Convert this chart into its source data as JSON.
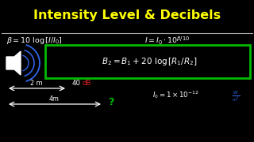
{
  "bg_color": "#000000",
  "title_color": "#ffff00",
  "white": "#ffffff",
  "green": "#00bb00",
  "blue": "#3366ee",
  "red": "#dd2222",
  "title_text": "Intensity Level & Decibels",
  "title_fontsize": 11.5,
  "formula1_left": "$\\beta = 10\\ \\log\\left[I/I_0\\right]$",
  "formula1_right": "$I = I_0 \\cdot 10^{\\beta/10}$",
  "box_formula": "$B_2 = B_1 + 20\\ \\log\\left[R_1/R_2\\right]$",
  "arrow1_label": "2 m",
  "arrow1_val": "40",
  "arrow1_unit": "dB",
  "arrow2_label": "4m",
  "arrow2_q": "?",
  "i0_formula": "$I_0 = 1\\times10^{-12}$",
  "i0_unit": "$\\frac{W}{m^2}$",
  "speaker_color": "#ffffff",
  "wave_color": "#3366ee"
}
